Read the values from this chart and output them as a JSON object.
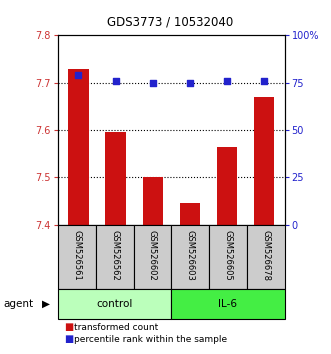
{
  "title": "GDS3773 / 10532040",
  "samples": [
    "GSM526561",
    "GSM526562",
    "GSM526602",
    "GSM526603",
    "GSM526605",
    "GSM526678"
  ],
  "bar_values": [
    7.73,
    7.595,
    7.5,
    7.445,
    7.565,
    7.67
  ],
  "percentile_values": [
    79,
    76,
    75,
    75,
    76,
    76
  ],
  "ylim_left": [
    7.4,
    7.8
  ],
  "ylim_right": [
    0,
    100
  ],
  "yticks_left": [
    7.4,
    7.5,
    7.6,
    7.7,
    7.8
  ],
  "yticks_right": [
    0,
    25,
    50,
    75,
    100
  ],
  "bar_color": "#cc1111",
  "dot_color": "#2222cc",
  "control_color": "#bbffbb",
  "il6_color": "#44ee44",
  "sample_box_color": "#cccccc",
  "control_label": "control",
  "il6_label": "IL-6",
  "agent_label": "agent",
  "legend_bar_label": "transformed count",
  "legend_dot_label": "percentile rank within the sample",
  "gridlines": [
    7.5,
    7.6,
    7.7
  ]
}
